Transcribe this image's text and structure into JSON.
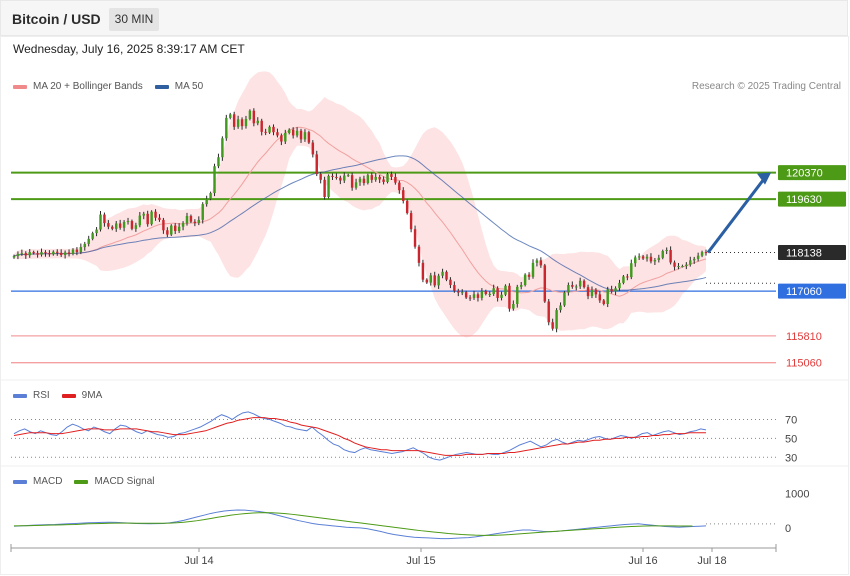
{
  "header": {
    "title": "Bitcoin / USD",
    "timeframe": "30 MIN",
    "datetime": "Wednesday, July 16, 2025 8:39:17 AM CET"
  },
  "price_legend": [
    {
      "label": "MA 20 + Bollinger Bands",
      "color": "#f08a8a"
    },
    {
      "label": "MA 50",
      "color": "#2f5f9e"
    }
  ],
  "copyright": "Research © 2025 Trading Central",
  "rsi_legend": [
    {
      "label": "RSI",
      "color": "#5b7fd6"
    },
    {
      "label": "9MA",
      "color": "#e02020"
    }
  ],
  "macd_legend": [
    {
      "label": "MACD",
      "color": "#5b7fd6"
    },
    {
      "label": "MACD Signal",
      "color": "#4d9a16"
    }
  ],
  "chart_data": {
    "type": "candlestick",
    "symbol": "Bitcoin / USD",
    "interval": "30 MIN",
    "price_axis": {
      "min": 114800,
      "max": 122400
    },
    "levels": {
      "resistance": [
        {
          "value": 120370,
          "label": "120370",
          "color": "#4d9a16"
        },
        {
          "value": 119630,
          "label": "119630",
          "color": "#4d9a16"
        }
      ],
      "current": {
        "value": 118138,
        "label": "118138",
        "color": "#2a2a2a"
      },
      "pivot": {
        "value": 117060,
        "label": "117060",
        "color": "#2f6fe0"
      },
      "support": [
        {
          "value": 115810,
          "label": "115810",
          "color": "#e23b3b"
        },
        {
          "value": 115060,
          "label": "115060",
          "color": "#e23b3b"
        }
      ]
    },
    "projection": {
      "from": 118138,
      "to": 120370,
      "color": "#2a5fa3"
    },
    "x_ticks": [
      "Jul 14",
      "Jul 15",
      "Jul 16",
      "Jul 18"
    ],
    "close": [
      118040,
      118100,
      118120,
      118060,
      118150,
      118120,
      118080,
      118150,
      118120,
      118090,
      118160,
      118130,
      118070,
      118140,
      118100,
      118220,
      118150,
      118290,
      118380,
      118520,
      118680,
      118780,
      119200,
      118960,
      118860,
      118800,
      118950,
      118830,
      118990,
      119020,
      118800,
      118900,
      119170,
      119220,
      118930,
      119280,
      119110,
      119050,
      118760,
      118640,
      118890,
      118740,
      118860,
      118960,
      119160,
      119000,
      118960,
      119050,
      119490,
      119640,
      119800,
      120550,
      120800,
      121330,
      121900,
      122000,
      121650,
      121860,
      121670,
      121870,
      122100,
      121750,
      121820,
      121510,
      121490,
      121650,
      121500,
      121410,
      121240,
      121480,
      121570,
      121410,
      121540,
      121300,
      121500,
      121210,
      120880,
      120330,
      120170,
      119690,
      120280,
      120250,
      120230,
      120150,
      120290,
      120300,
      119950,
      120100,
      120200,
      120080,
      120300,
      120170,
      120250,
      120180,
      120110,
      120330,
      120250,
      120090,
      119880,
      119580,
      119240,
      118790,
      118300,
      117850,
      117380,
      117300,
      117500,
      117220,
      117490,
      117600,
      117380,
      117230,
      117070,
      117020,
      117030,
      116880,
      116870,
      116970,
      116870,
      117060,
      116980,
      116980,
      117140,
      116870,
      116960,
      117210,
      116570,
      116700,
      117180,
      117230,
      117520,
      117460,
      117850,
      117920,
      117780,
      116770,
      116190,
      116010,
      116530,
      116660,
      117020,
      117230,
      117180,
      117190,
      117350,
      117170,
      116920,
      117090,
      116970,
      116800,
      116700,
      117110,
      117050,
      117140,
      117290,
      117470,
      117450,
      117840,
      118000,
      118030,
      117970,
      118020,
      117890,
      117930,
      117990,
      118180,
      118210,
      117860,
      117740,
      117760,
      117760,
      117800,
      117920,
      117960,
      118050,
      118150,
      118138
    ],
    "rsi": {
      "values": [
        55,
        58,
        60,
        57,
        55,
        58,
        56,
        54,
        53,
        57,
        62,
        65,
        63,
        60,
        58,
        62,
        60,
        57,
        55,
        60,
        64,
        63,
        60,
        57,
        55,
        58,
        56,
        54,
        53,
        51,
        52,
        55,
        56,
        58,
        60,
        62,
        65,
        68,
        72,
        75,
        73,
        70,
        74,
        77,
        78,
        76,
        73,
        71,
        70,
        68,
        66,
        63,
        62,
        60,
        59,
        58,
        62,
        57,
        53,
        48,
        44,
        42,
        38,
        36,
        35,
        38,
        40,
        38,
        37,
        36,
        35,
        34,
        35,
        36,
        38,
        40,
        37,
        34,
        30,
        28,
        27,
        29,
        31,
        33,
        34,
        35,
        34,
        33,
        33,
        34,
        33,
        33,
        35,
        37,
        40,
        43,
        45,
        47,
        44,
        41,
        43,
        47,
        49,
        46,
        44,
        46,
        48,
        47,
        49,
        51,
        52,
        50,
        49,
        51,
        53,
        52,
        50,
        52,
        55,
        56,
        53,
        55,
        57,
        58,
        56,
        54,
        55,
        57,
        58,
        60,
        59
      ],
      "ma": [
        53,
        54,
        55,
        56,
        56,
        56,
        56,
        55,
        55,
        55,
        56,
        57,
        58,
        59,
        60,
        60,
        60,
        59,
        59,
        59,
        60,
        60,
        60,
        60,
        59,
        58,
        57,
        57,
        56,
        55,
        54,
        54,
        54,
        55,
        56,
        57,
        58,
        60,
        62,
        64,
        66,
        67,
        69,
        70,
        71,
        72,
        72,
        72,
        71,
        71,
        70,
        69,
        67,
        66,
        64,
        63,
        62,
        61,
        59,
        57,
        55,
        53,
        50,
        48,
        45,
        43,
        41,
        40,
        39,
        38,
        38,
        37,
        37,
        37,
        37,
        37,
        37,
        36,
        35,
        34,
        33,
        32,
        32,
        32,
        32,
        33,
        33,
        33,
        33,
        34,
        34,
        34,
        34,
        35,
        35,
        36,
        37,
        38,
        39,
        40,
        41,
        42,
        43,
        44,
        44,
        45,
        46,
        46,
        47,
        48,
        48,
        49,
        49,
        50,
        50,
        51,
        51,
        51,
        52,
        52,
        53,
        53,
        54,
        54,
        55,
        55,
        55,
        56,
        56,
        56,
        56
      ],
      "levels": [
        "70",
        "50",
        "30"
      ]
    },
    "macd": {
      "values": [
        50,
        60,
        70,
        80,
        90,
        95,
        100,
        110,
        120,
        130,
        140,
        150,
        155,
        160,
        165,
        160,
        150,
        140,
        130,
        125,
        120,
        125,
        130,
        150,
        180,
        220,
        270,
        320,
        370,
        420,
        460,
        490,
        510,
        520,
        515,
        500,
        480,
        450,
        410,
        360,
        310,
        260,
        210,
        170,
        130,
        100,
        80,
        60,
        40,
        20,
        10,
        0,
        -20,
        -60,
        -100,
        -150,
        -190,
        -220,
        -250,
        -270,
        -280,
        -290,
        -300,
        -310,
        -310,
        -300,
        -290,
        -280,
        -260,
        -230,
        -200,
        -170,
        -140,
        -110,
        -80,
        -60,
        -60,
        -80,
        -100,
        -110,
        -100,
        -80,
        -60,
        -40,
        -20,
        0,
        20,
        40,
        60,
        80,
        100,
        110,
        120,
        100,
        80,
        60,
        40,
        30,
        20,
        30,
        40,
        50,
        60
      ],
      "signal": [
        60,
        62,
        65,
        70,
        75,
        80,
        85,
        90,
        95,
        100,
        110,
        120,
        125,
        130,
        135,
        138,
        140,
        138,
        136,
        135,
        134,
        135,
        136,
        140,
        150,
        165,
        185,
        210,
        240,
        275,
        310,
        340,
        370,
        395,
        415,
        430,
        440,
        445,
        440,
        430,
        415,
        395,
        370,
        345,
        320,
        295,
        270,
        245,
        220,
        195,
        170,
        145,
        120,
        95,
        70,
        45,
        20,
        -5,
        -30,
        -55,
        -80,
        -100,
        -120,
        -140,
        -160,
        -175,
        -190,
        -200,
        -210,
        -215,
        -215,
        -212,
        -205,
        -195,
        -180,
        -165,
        -150,
        -135,
        -120,
        -108,
        -95,
        -82,
        -70,
        -58,
        -45,
        -32,
        -20,
        -8,
        5,
        18,
        30,
        40,
        50,
        55,
        58,
        60,
        60,
        58,
        56,
        55,
        55
      ],
      "levels": [
        "1000",
        "0"
      ]
    }
  }
}
